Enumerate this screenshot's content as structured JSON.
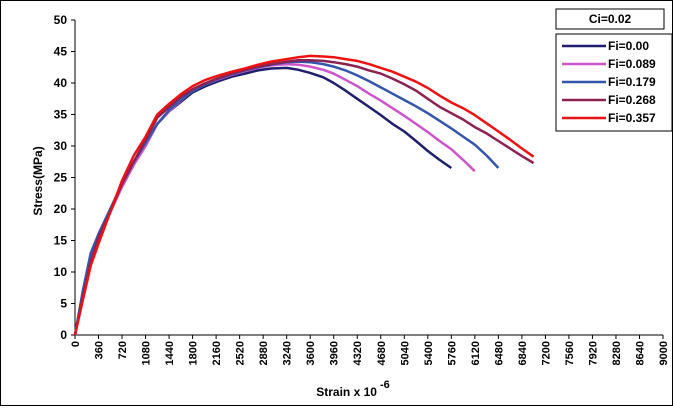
{
  "chart_data": {
    "type": "line",
    "title": "",
    "xlabel": "Strain x 10",
    "xlabel_superscript": "-6",
    "ylabel": "Stress(MPa)",
    "xlim": [
      0,
      9000
    ],
    "ylim": [
      0,
      50
    ],
    "x_ticks": [
      0,
      360,
      720,
      1080,
      1440,
      1800,
      2160,
      2520,
      2880,
      3240,
      3600,
      3960,
      4320,
      4680,
      5040,
      5400,
      5760,
      6120,
      6480,
      6840,
      7200,
      7560,
      7920,
      8280,
      8640,
      9000
    ],
    "y_ticks": [
      0,
      5,
      10,
      15,
      20,
      25,
      30,
      35,
      40,
      45,
      50
    ],
    "grid": false,
    "legend_header": "Ci=0.02",
    "legend_position": "top-right",
    "series": [
      {
        "name": "Fi=0.00",
        "color": "#1f1f6e",
        "x": [
          0,
          120,
          240,
          360,
          540,
          720,
          900,
          1080,
          1260,
          1440,
          1620,
          1800,
          2000,
          2200,
          2400,
          2600,
          2800,
          3000,
          3240,
          3420,
          3600,
          3800,
          3960,
          4140,
          4320,
          4500,
          4680,
          4860,
          5040,
          5220,
          5400,
          5580,
          5760
        ],
        "y": [
          0,
          6.5,
          12.5,
          16,
          20,
          24,
          27.5,
          30.5,
          33.5,
          35.5,
          37,
          38.5,
          39.5,
          40.3,
          41,
          41.5,
          42,
          42.3,
          42.4,
          42.1,
          41.6,
          40.9,
          40,
          38.8,
          37.5,
          36.2,
          34.9,
          33.5,
          32.3,
          30.8,
          29.2,
          27.8,
          26.5
        ]
      },
      {
        "name": "Fi=0.089",
        "color": "#cc55cc",
        "x": [
          0,
          120,
          240,
          360,
          540,
          720,
          900,
          1080,
          1260,
          1440,
          1620,
          1800,
          2000,
          2200,
          2400,
          2600,
          2800,
          3000,
          3240,
          3420,
          3600,
          3800,
          3960,
          4140,
          4320,
          4500,
          4680,
          4860,
          5040,
          5220,
          5400,
          5580,
          5760,
          5940,
          6120
        ],
        "y": [
          0,
          6.5,
          12,
          15.5,
          19.5,
          23.5,
          27,
          30,
          33.5,
          35.5,
          37.2,
          38.8,
          39.8,
          40.6,
          41.3,
          41.9,
          42.4,
          42.8,
          43,
          42.9,
          42.6,
          42.1,
          41.5,
          40.5,
          39.5,
          38.3,
          37.2,
          36,
          34.8,
          33.5,
          32.2,
          30.8,
          29.5,
          27.8,
          26
        ]
      },
      {
        "name": "Fi=0.179",
        "color": "#3355aa",
        "x": [
          0,
          120,
          240,
          360,
          540,
          720,
          900,
          1080,
          1260,
          1440,
          1620,
          1800,
          2000,
          2200,
          2400,
          2600,
          2800,
          3000,
          3240,
          3420,
          3600,
          3800,
          3960,
          4140,
          4320,
          4500,
          4680,
          4860,
          5040,
          5220,
          5400,
          5580,
          5760,
          5940,
          6120,
          6300,
          6480
        ],
        "y": [
          0,
          7,
          13,
          16,
          20,
          24,
          27.5,
          30.5,
          33.5,
          35.7,
          37.3,
          38.7,
          39.8,
          40.7,
          41.4,
          42,
          42.5,
          42.9,
          43.3,
          43.4,
          43.3,
          43,
          42.6,
          42,
          41.2,
          40.3,
          39.3,
          38.3,
          37.3,
          36.3,
          35.2,
          34,
          32.8,
          31.5,
          30.2,
          28.5,
          26.5
        ]
      },
      {
        "name": "Fi=0.268",
        "color": "#8b2252",
        "x": [
          0,
          120,
          240,
          360,
          540,
          720,
          900,
          1080,
          1260,
          1440,
          1620,
          1800,
          2000,
          2200,
          2400,
          2600,
          2800,
          3000,
          3240,
          3420,
          3600,
          3800,
          3960,
          4140,
          4320,
          4500,
          4680,
          4860,
          5040,
          5220,
          5400,
          5580,
          5760,
          5940,
          6120,
          6300,
          6480,
          6660,
          6840,
          7020
        ],
        "y": [
          0,
          6,
          11.5,
          15.5,
          19.5,
          24,
          27.5,
          31,
          34.5,
          36.2,
          37.8,
          39,
          40,
          40.8,
          41.5,
          42.1,
          42.6,
          43,
          43.4,
          43.6,
          43.6,
          43.5,
          43.3,
          43,
          42.6,
          42,
          41.5,
          40.7,
          39.8,
          38.8,
          37.5,
          36.2,
          35.2,
          34.2,
          33,
          32,
          30.8,
          29.6,
          28.4,
          27.3
        ]
      },
      {
        "name": "Fi=0.357",
        "color": "#ee1111",
        "x": [
          0,
          120,
          240,
          360,
          540,
          720,
          900,
          1080,
          1260,
          1440,
          1620,
          1800,
          2000,
          2200,
          2400,
          2600,
          2800,
          3000,
          3240,
          3420,
          3600,
          3800,
          3960,
          4140,
          4320,
          4500,
          4680,
          4860,
          5040,
          5220,
          5400,
          5580,
          5760,
          5940,
          6120,
          6300,
          6480,
          6660,
          6840,
          7020
        ],
        "y": [
          0,
          5.5,
          11,
          14.5,
          19.5,
          24.5,
          28.5,
          31.5,
          35,
          36.7,
          38.2,
          39.5,
          40.5,
          41.2,
          41.8,
          42.3,
          42.9,
          43.4,
          43.8,
          44.1,
          44.3,
          44.2,
          44.1,
          43.8,
          43.5,
          43,
          42.4,
          41.8,
          41,
          40.2,
          39.2,
          38,
          36.9,
          36,
          34.9,
          33.6,
          32.3,
          31,
          29.6,
          28.3
        ]
      }
    ]
  }
}
